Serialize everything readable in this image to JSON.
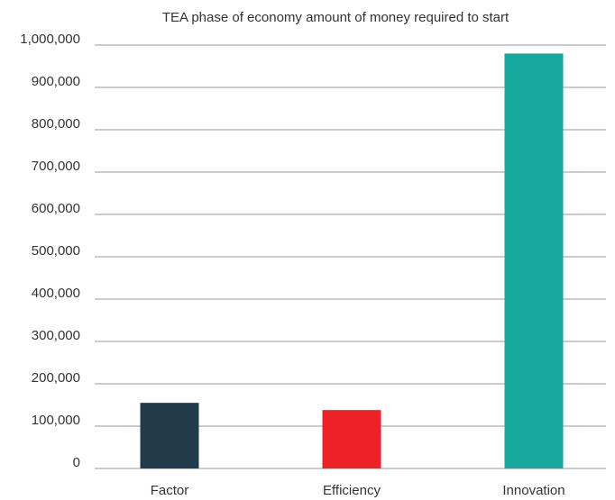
{
  "chart_data": {
    "type": "bar",
    "title": "TEA phase of economy amount of money required to start",
    "categories": [
      "Factor",
      "Efficiency",
      "Innovation"
    ],
    "values": [
      155000,
      138000,
      980000
    ],
    "colors": [
      "#213b4a",
      "#ee2128",
      "#17a89d"
    ],
    "ylim": [
      0,
      1000000
    ],
    "yticks": [
      {
        "value": 0,
        "label": "0"
      },
      {
        "value": 100000,
        "label": "100,000"
      },
      {
        "value": 200000,
        "label": "200,000"
      },
      {
        "value": 300000,
        "label": "300,000"
      },
      {
        "value": 400000,
        "label": "400,000"
      },
      {
        "value": 500000,
        "label": "500,000"
      },
      {
        "value": 600000,
        "label": "600,000"
      },
      {
        "value": 700000,
        "label": "700,000"
      },
      {
        "value": 800000,
        "label": "800,000"
      },
      {
        "value": 900000,
        "label": "900,000"
      },
      {
        "value": 1000000,
        "label": "1,000,000"
      }
    ],
    "grid": true
  }
}
